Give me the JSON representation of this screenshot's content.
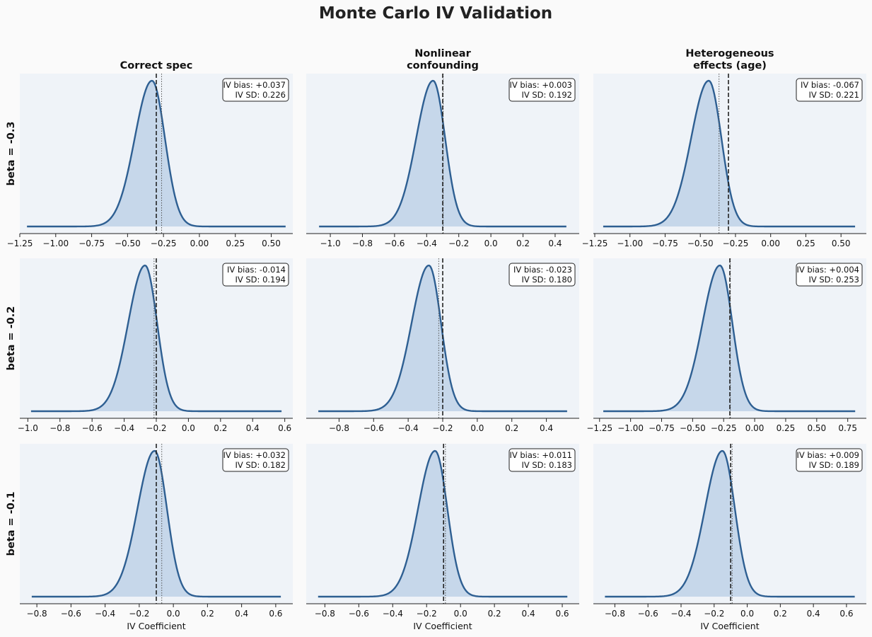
{
  "title": "Monte Carlo IV Validation",
  "columns": [
    "Correct spec",
    "Nonlinear\nconfounding",
    "Heterogeneous\neffects (age)"
  ],
  "rows": [
    "beta = -0.3",
    "beta = -0.2",
    "beta = -0.1"
  ],
  "xlabel": "IV Coefficient",
  "colors": {
    "figure_bg": "#fafafa",
    "axes_bg": "#eff3f8",
    "line": "#2e5f92",
    "fill": "#c6d7ea"
  },
  "chart_data": {
    "type": "area",
    "description_kind": "3x3 grid of kernel density plots",
    "panels": [
      {
        "row": "beta = -0.3",
        "col": "Correct spec",
        "true_beta": -0.3,
        "mean_estimate": -0.263,
        "bias_label": "IV bias: +0.037",
        "sd_label": "IV SD: 0.226",
        "xlim": [
          -1.25,
          0.65
        ],
        "xticks": [
          -1.25,
          -1.0,
          -0.75,
          -0.5,
          -0.25,
          0.0,
          0.25,
          0.5
        ],
        "xtick_labels": [
          "−1.25",
          "−1.00",
          "−0.75",
          "−0.50",
          "−0.25",
          "0.00",
          "0.25",
          "0.50"
        ],
        "density_x_range": [
          -1.2,
          0.6
        ],
        "mode": -0.33,
        "left_sd": 0.12,
        "right_sd": 0.09
      },
      {
        "row": "beta = -0.3",
        "col": "Nonlinear\nconfounding",
        "true_beta": -0.3,
        "mean_estimate": -0.297,
        "bias_label": "IV bias: +0.003",
        "sd_label": "IV SD: 0.192",
        "xlim": [
          -1.15,
          0.55
        ],
        "xticks": [
          -1.0,
          -0.8,
          -0.6,
          -0.4,
          -0.2,
          0.0,
          0.2,
          0.4
        ],
        "xtick_labels": [
          "−1.0",
          "−0.8",
          "−0.6",
          "−0.4",
          "−0.2",
          "0.0",
          "0.2",
          "0.4"
        ],
        "density_x_range": [
          -1.07,
          0.47
        ],
        "mode": -0.36,
        "left_sd": 0.105,
        "right_sd": 0.075
      },
      {
        "row": "beta = -0.3",
        "col": "Heterogeneous\neffects (age)",
        "true_beta": -0.3,
        "mean_estimate": -0.367,
        "bias_label": "IV bias: -0.067",
        "sd_label": "IV SD: 0.221",
        "xlim": [
          -1.26,
          0.68
        ],
        "xticks": [
          -1.25,
          -1.0,
          -0.75,
          -0.5,
          -0.25,
          0.0,
          0.25,
          0.5
        ],
        "xtick_labels": [
          "−1.25",
          "−1.00",
          "−0.75",
          "−0.50",
          "−0.25",
          "0.00",
          "0.25",
          "0.50"
        ],
        "density_x_range": [
          -1.19,
          0.6
        ],
        "mode": -0.44,
        "left_sd": 0.125,
        "right_sd": 0.09
      },
      {
        "row": "beta = -0.2",
        "col": "Correct spec",
        "true_beta": -0.2,
        "mean_estimate": -0.214,
        "bias_label": "IV bias: -0.014",
        "sd_label": "IV SD: 0.194",
        "xlim": [
          -1.05,
          0.65
        ],
        "xticks": [
          -1.0,
          -0.8,
          -0.6,
          -0.4,
          -0.2,
          0.0,
          0.2,
          0.4,
          0.6
        ],
        "xtick_labels": [
          "−1.0",
          "−0.8",
          "−0.6",
          "−0.4",
          "−0.2",
          "0.0",
          "0.2",
          "0.4",
          "0.6"
        ],
        "density_x_range": [
          -0.98,
          0.58
        ],
        "mode": -0.27,
        "left_sd": 0.105,
        "right_sd": 0.075
      },
      {
        "row": "beta = -0.2",
        "col": "Nonlinear\nconfounding",
        "true_beta": -0.2,
        "mean_estimate": -0.223,
        "bias_label": "IV bias: -0.023",
        "sd_label": "IV SD: 0.180",
        "xlim": [
          -0.99,
          0.59
        ],
        "xticks": [
          -0.8,
          -0.6,
          -0.4,
          -0.2,
          0.0,
          0.2,
          0.4
        ],
        "xtick_labels": [
          "−0.8",
          "−0.6",
          "−0.4",
          "−0.2",
          "0.0",
          "0.2",
          "0.4"
        ],
        "density_x_range": [
          -0.92,
          0.52
        ],
        "mode": -0.28,
        "left_sd": 0.1,
        "right_sd": 0.07
      },
      {
        "row": "beta = -0.2",
        "col": "Heterogeneous\neffects (age)",
        "true_beta": -0.2,
        "mean_estimate": -0.196,
        "bias_label": "IV bias: +0.004",
        "sd_label": "IV SD: 0.253",
        "xlim": [
          -1.3,
          0.9
        ],
        "xticks": [
          -1.25,
          -1.0,
          -0.75,
          -0.5,
          -0.25,
          0.0,
          0.25,
          0.5,
          0.75
        ],
        "xtick_labels": [
          "−1.25",
          "−1.00",
          "−0.75",
          "−0.50",
          "−0.25",
          "0.00",
          "0.25",
          "0.50",
          "0.75"
        ],
        "density_x_range": [
          -1.22,
          0.81
        ],
        "mode": -0.28,
        "left_sd": 0.14,
        "right_sd": 0.1
      },
      {
        "row": "beta = -0.1",
        "col": "Correct spec",
        "true_beta": -0.1,
        "mean_estimate": -0.068,
        "bias_label": "IV bias: +0.032",
        "sd_label": "IV SD: 0.182",
        "xlim": [
          -0.9,
          0.7
        ],
        "xticks": [
          -0.8,
          -0.6,
          -0.4,
          -0.2,
          0.0,
          0.2,
          0.4,
          0.6
        ],
        "xtick_labels": [
          "−0.8",
          "−0.6",
          "−0.4",
          "−0.2",
          "0.0",
          "0.2",
          "0.4",
          "0.6"
        ],
        "density_x_range": [
          -0.83,
          0.63
        ],
        "mode": -0.11,
        "left_sd": 0.1,
        "right_sd": 0.072
      },
      {
        "row": "beta = -0.1",
        "col": "Nonlinear\nconfounding",
        "true_beta": -0.1,
        "mean_estimate": -0.089,
        "bias_label": "IV bias: +0.011",
        "sd_label": "IV SD: 0.183",
        "xlim": [
          -0.91,
          0.7
        ],
        "xticks": [
          -0.8,
          -0.6,
          -0.4,
          -0.2,
          0.0,
          0.2,
          0.4,
          0.6
        ],
        "xtick_labels": [
          "−0.8",
          "−0.6",
          "−0.4",
          "−0.2",
          "0.0",
          "0.2",
          "0.4",
          "0.6"
        ],
        "density_x_range": [
          -0.84,
          0.63
        ],
        "mode": -0.15,
        "left_sd": 0.1,
        "right_sd": 0.072
      },
      {
        "row": "beta = -0.1",
        "col": "Heterogeneous\neffects (age)",
        "true_beta": -0.1,
        "mean_estimate": -0.091,
        "bias_label": "IV bias: +0.009",
        "sd_label": "IV SD: 0.189",
        "xlim": [
          -0.93,
          0.72
        ],
        "xticks": [
          -0.8,
          -0.6,
          -0.4,
          -0.2,
          0.0,
          0.2,
          0.4,
          0.6
        ],
        "xtick_labels": [
          "−0.8",
          "−0.6",
          "−0.4",
          "−0.2",
          "0.0",
          "0.2",
          "0.4",
          "0.6"
        ],
        "density_x_range": [
          -0.86,
          0.65
        ],
        "mode": -0.15,
        "left_sd": 0.105,
        "right_sd": 0.075
      }
    ]
  }
}
